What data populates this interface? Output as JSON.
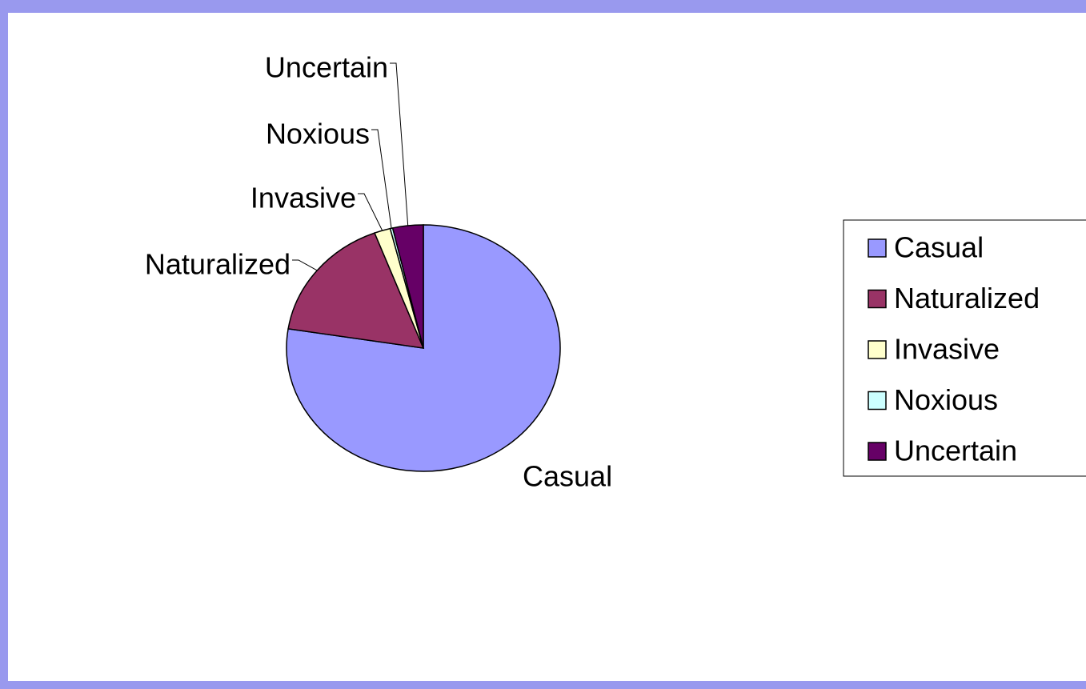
{
  "chart_data": {
    "type": "pie",
    "categories": [
      "Casual",
      "Naturalized",
      "Invasive",
      "Noxious",
      "Uncertain"
    ],
    "values": [
      77.5,
      16.7,
      1.9,
      0.3,
      3.6
    ],
    "colors": [
      "#9999ff",
      "#993366",
      "#ffffcc",
      "#ccffff",
      "#660066"
    ],
    "legend": "right"
  }
}
